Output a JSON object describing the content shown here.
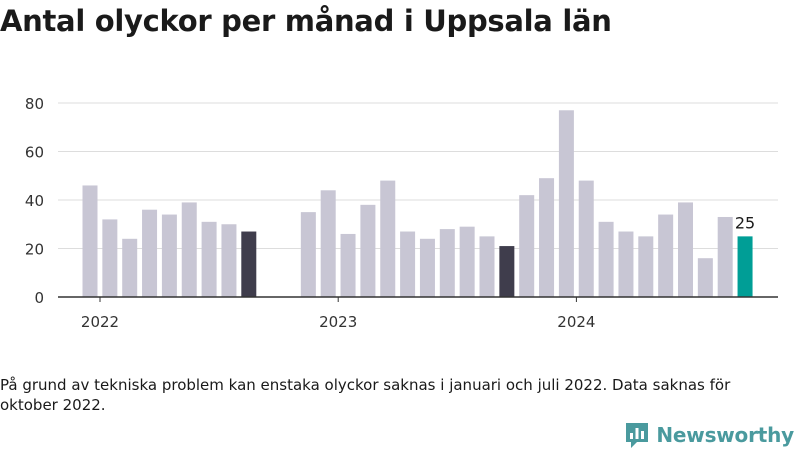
{
  "title": "Antal olyckor per månad i Uppsala län",
  "footnote": "På grund av tekniska problem kan enstaka olyckor saknas i januari och juli 2022. Data saknas för oktober 2022.",
  "brand": {
    "name": "Newsworthy",
    "icon": "newsworthy-logo-icon"
  },
  "colors": {
    "bar": "#c8c6d4",
    "highlight_dark": "#3f3d4c",
    "highlight_last": "#009e96",
    "grid": "#dddddd",
    "axis": "#333333",
    "text": "#333333"
  },
  "chart_data": {
    "type": "bar",
    "categories": [
      "2022-01",
      "2022-02",
      "2022-03",
      "2022-04",
      "2022-05",
      "2022-06",
      "2022-07",
      "2022-08",
      "2022-09",
      "2022-10",
      "2022-11",
      "2022-12",
      "2023-01",
      "2023-02",
      "2023-03",
      "2023-04",
      "2023-05",
      "2023-06",
      "2023-07",
      "2023-08",
      "2023-09",
      "2023-10",
      "2023-11",
      "2023-12",
      "2024-01",
      "2024-02",
      "2024-03",
      "2024-04",
      "2024-05",
      "2024-06",
      "2024-07",
      "2024-08",
      "2024-09",
      "2024-10"
    ],
    "values": [
      46,
      32,
      24,
      36,
      34,
      39,
      31,
      30,
      27,
      null,
      0,
      35,
      44,
      26,
      38,
      48,
      27,
      24,
      28,
      29,
      25,
      21,
      42,
      49,
      77,
      48,
      31,
      27,
      25,
      34,
      39,
      16,
      33,
      25
    ],
    "highlight_dark": [
      "2022-09",
      "2023-10"
    ],
    "highlight_last": "2024-10",
    "data_labels": [
      {
        "category": "2024-10",
        "text": "25"
      }
    ],
    "x_tick_labels": [
      "2022",
      "2023",
      "2024"
    ],
    "x_ticks_at": [
      "2022-01",
      "2023-01",
      "2024-01"
    ],
    "y_ticks": [
      0,
      20,
      40,
      60,
      80
    ],
    "ylim": [
      0,
      80
    ],
    "grid": true,
    "xlabel": "",
    "ylabel": ""
  }
}
